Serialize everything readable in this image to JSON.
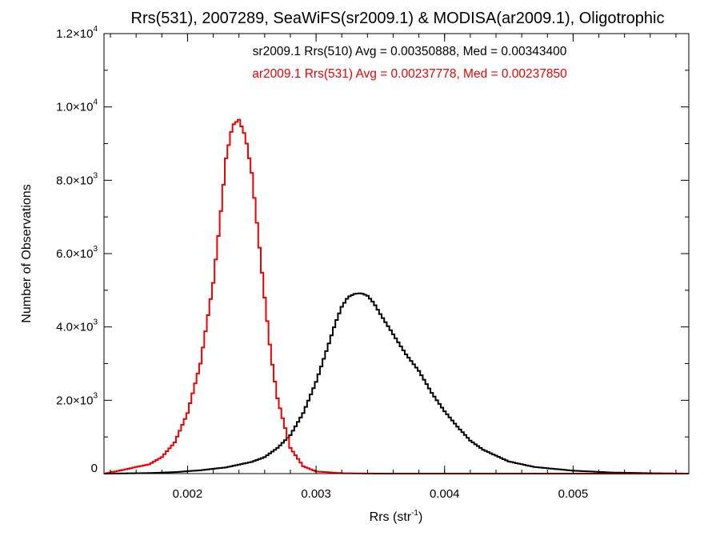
{
  "chart_data": {
    "type": "histogram",
    "title": "Rrs(531), 2007289, SeaWiFS(sr2009.1) & MODISA(ar2009.1), Oligotrophic",
    "xlabel": "Rrs (str",
    "xlabel_sup": "-1",
    "xlabel_end": ")",
    "ylabel": "Number of Observations",
    "xlim": [
      0.00135,
      0.0059
    ],
    "ylim": [
      0,
      12000
    ],
    "x_ticks": [
      {
        "value": 0.002,
        "label": "0.002"
      },
      {
        "value": 0.003,
        "label": "0.003"
      },
      {
        "value": 0.004,
        "label": "0.004"
      },
      {
        "value": 0.005,
        "label": "0.005"
      }
    ],
    "y_ticks": [
      {
        "value": 0,
        "mant": "0",
        "exp": ""
      },
      {
        "value": 2000,
        "mant": "2.0×10",
        "exp": "3"
      },
      {
        "value": 4000,
        "mant": "4.0×10",
        "exp": "3"
      },
      {
        "value": 6000,
        "mant": "6.0×10",
        "exp": "3"
      },
      {
        "value": 8000,
        "mant": "8.0×10",
        "exp": "3"
      },
      {
        "value": 10000,
        "mant": "1.0×10",
        "exp": "4"
      },
      {
        "value": 12000,
        "mant": "1.2×10",
        "exp": "4"
      }
    ],
    "x_minor_step": 0.0002,
    "y_minor_step": 1000,
    "grid": false,
    "series": [
      {
        "name": "sr2009.1 Rrs(510) Avg = 0.00350888, Med = 0.00343400",
        "color": "#000000",
        "x": [
          0.00135,
          0.0015,
          0.0017,
          0.0019,
          0.0021,
          0.0023,
          0.0025,
          0.0026,
          0.0027,
          0.0028,
          0.0029,
          0.003,
          0.0031,
          0.00315,
          0.0032,
          0.00325,
          0.0033,
          0.00335,
          0.0034,
          0.00345,
          0.0035,
          0.0036,
          0.0037,
          0.0038,
          0.0039,
          0.004,
          0.0041,
          0.0042,
          0.0043,
          0.0045,
          0.0047,
          0.005,
          0.0053,
          0.0056,
          0.0059
        ],
        "values": [
          0,
          5,
          15,
          40,
          90,
          170,
          320,
          450,
          700,
          1050,
          1650,
          2500,
          3550,
          4100,
          4550,
          4820,
          4900,
          4920,
          4850,
          4650,
          4350,
          3800,
          3250,
          2800,
          2200,
          1700,
          1280,
          900,
          650,
          330,
          180,
          80,
          30,
          10,
          0
        ]
      },
      {
        "name": "ar2009.1 Rrs(531) Avg = 0.00237778, Med = 0.00237850",
        "color": "#ee0000",
        "x": [
          0.00135,
          0.0015,
          0.0016,
          0.0017,
          0.0018,
          0.0019,
          0.002,
          0.0021,
          0.0022,
          0.00225,
          0.0023,
          0.00235,
          0.0024,
          0.00245,
          0.0025,
          0.00255,
          0.0026,
          0.00265,
          0.0027,
          0.0028,
          0.0029,
          0.003,
          0.0032,
          0.0035,
          0.0059
        ],
        "values": [
          0,
          100,
          180,
          250,
          450,
          850,
          1650,
          3000,
          5200,
          6800,
          8600,
          9500,
          9650,
          9200,
          8200,
          6500,
          4800,
          3200,
          2050,
          700,
          200,
          60,
          10,
          0,
          0
        ]
      }
    ]
  }
}
